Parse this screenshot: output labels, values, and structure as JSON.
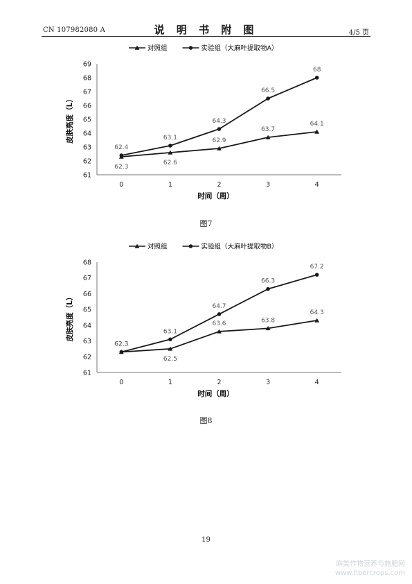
{
  "header": {
    "patent_no": "CN 107982080 A",
    "title": "说 明 书 附 图",
    "page": "4/5 页"
  },
  "figures": [
    {
      "caption": "图7",
      "chart_data": {
        "type": "line",
        "x": [
          "0",
          "1",
          "2",
          "3",
          "4"
        ],
        "series": [
          {
            "name": "对照组",
            "marker": "triangle",
            "values": [
              62.3,
              62.6,
              62.9,
              63.7,
              64.1
            ]
          },
          {
            "name": "实验组（大麻叶提取物A）",
            "marker": "circle",
            "values": [
              62.4,
              63.1,
              64.3,
              66.5,
              68
            ]
          }
        ],
        "ylabel": "皮肤亮度（L）",
        "xlabel": "时间（周）",
        "ylim": [
          61,
          69
        ],
        "yticks": [
          61,
          62,
          63,
          64,
          65,
          66,
          67,
          68,
          69
        ],
        "legend": "top",
        "grid": false
      }
    },
    {
      "caption": "图8",
      "chart_data": {
        "type": "line",
        "x": [
          "0",
          "1",
          "2",
          "3",
          "4"
        ],
        "series": [
          {
            "name": "对照组",
            "marker": "triangle",
            "values": [
              62.3,
              62.5,
              63.6,
              63.8,
              64.3
            ]
          },
          {
            "name": "实验组（大麻叶提取物B）",
            "marker": "circle",
            "values": [
              62.3,
              63.1,
              64.7,
              66.3,
              67.2
            ]
          }
        ],
        "ylabel": "皮肤亮度（L）",
        "xlabel": "时间（周）",
        "ylim": [
          61,
          68
        ],
        "yticks": [
          61,
          62,
          63,
          64,
          65,
          66,
          67,
          68
        ],
        "legend": "top",
        "grid": false
      }
    }
  ],
  "page_number": "19",
  "watermark": {
    "line1": "麻类作物营养与施肥网",
    "line2": "www.fibercrops.com"
  },
  "colors": {
    "line": "#1a1a1a",
    "label": "#555555"
  }
}
